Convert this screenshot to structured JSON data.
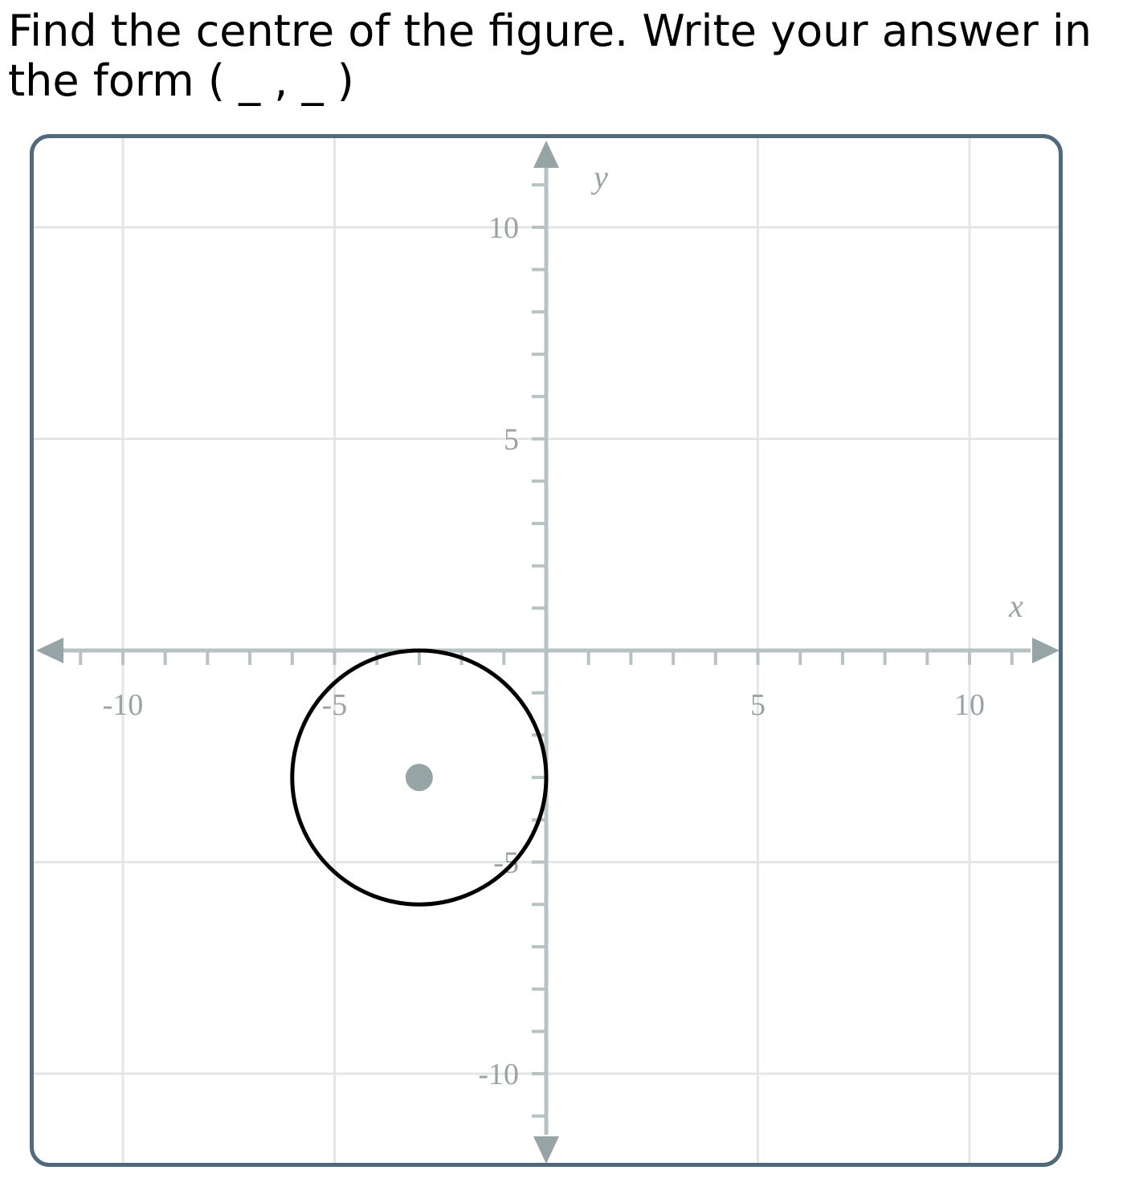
{
  "question": {
    "text": "Find the centre of the figure. Write your answer in the form ( _ , _ )"
  },
  "colors": {
    "frame": "#526979",
    "grid": "#e3e5e6",
    "axis": "#b8c1c3",
    "arrow": "#97a4a6",
    "tick_text": "#9aa2a4",
    "circle": "#000000",
    "center_point": "#97a4a6"
  },
  "chart_data": {
    "type": "scatter",
    "x_axis_label": "x",
    "y_axis_label": "y",
    "xlim": [
      -12.2,
      12.2
    ],
    "ylim": [
      -12.2,
      12.2
    ],
    "grid": true,
    "gridline_step": 5,
    "minor_tick_step": 1,
    "x_tick_labels": [
      {
        "value": -10,
        "label": "-10"
      },
      {
        "value": -5,
        "label": "-5"
      },
      {
        "value": 5,
        "label": "5"
      },
      {
        "value": 10,
        "label": "10"
      }
    ],
    "y_tick_labels": [
      {
        "value": 10,
        "label": "10"
      },
      {
        "value": 5,
        "label": "5"
      },
      {
        "value": -5,
        "label": "-5"
      },
      {
        "value": -10,
        "label": "-10"
      }
    ],
    "shapes": [
      {
        "type": "circle",
        "center": [
          -3,
          -3
        ],
        "radius": 3
      }
    ],
    "points": [
      {
        "x": -3,
        "y": -3
      }
    ]
  }
}
